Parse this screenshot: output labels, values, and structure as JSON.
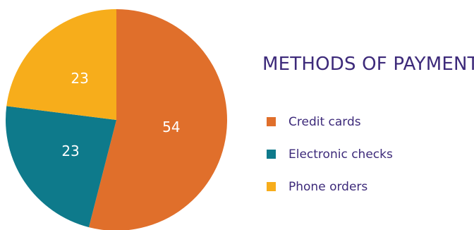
{
  "chart_data": {
    "type": "pie",
    "title": "METHODS OF PAYMENT",
    "categories": [
      "Credit cards",
      "Electronic checks",
      "Phone orders"
    ],
    "values": [
      54,
      23,
      23
    ],
    "colors": [
      "#e06f2b",
      "#0e7a8b",
      "#f7ad1b"
    ],
    "data_labels": [
      "54",
      "23",
      "23"
    ],
    "start_angle_deg": 0,
    "direction": "clockwise",
    "legend_position": "right"
  }
}
